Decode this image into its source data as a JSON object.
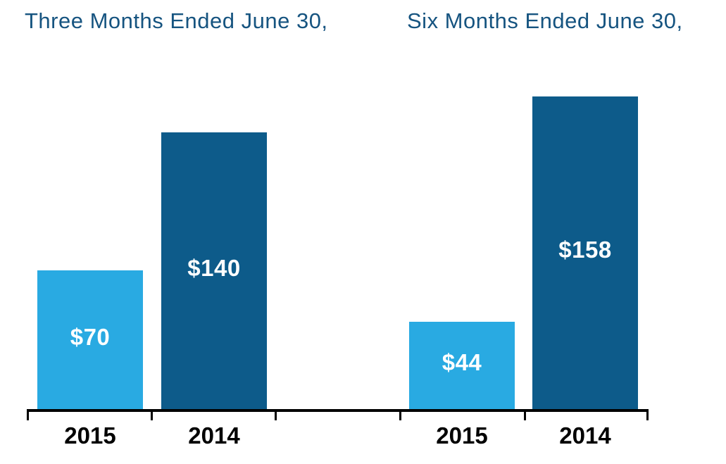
{
  "chart_data": [
    {
      "type": "bar",
      "title": "Three Months Ended June 30,",
      "categories": [
        "2015",
        "2014"
      ],
      "values": [
        70,
        140
      ],
      "value_labels": [
        "$70",
        "$140"
      ],
      "bar_colors": [
        "#29AAE2",
        "#0D5B8A"
      ],
      "xlabel": "",
      "ylabel": "",
      "ylim": [
        0,
        200
      ],
      "grid": false,
      "legend": false,
      "value_label_position": "inside-center"
    },
    {
      "type": "bar",
      "title": "Six Months Ended June 30,",
      "categories": [
        "2015",
        "2014"
      ],
      "values": [
        44,
        158
      ],
      "value_labels": [
        "$44",
        "$158"
      ],
      "bar_colors": [
        "#29AAE2",
        "#0D5B8A"
      ],
      "xlabel": "",
      "ylabel": "",
      "ylim": [
        0,
        200
      ],
      "grid": false,
      "legend": false,
      "value_label_position": "inside-center"
    }
  ],
  "colors": {
    "title_text": "#165480",
    "axis": "#000000",
    "value_label_text": "#FFFFFF",
    "category_label_text": "#000000",
    "light_blue": "#29AAE2",
    "dark_blue": "#0D5B8A",
    "background": "#FFFFFF"
  }
}
